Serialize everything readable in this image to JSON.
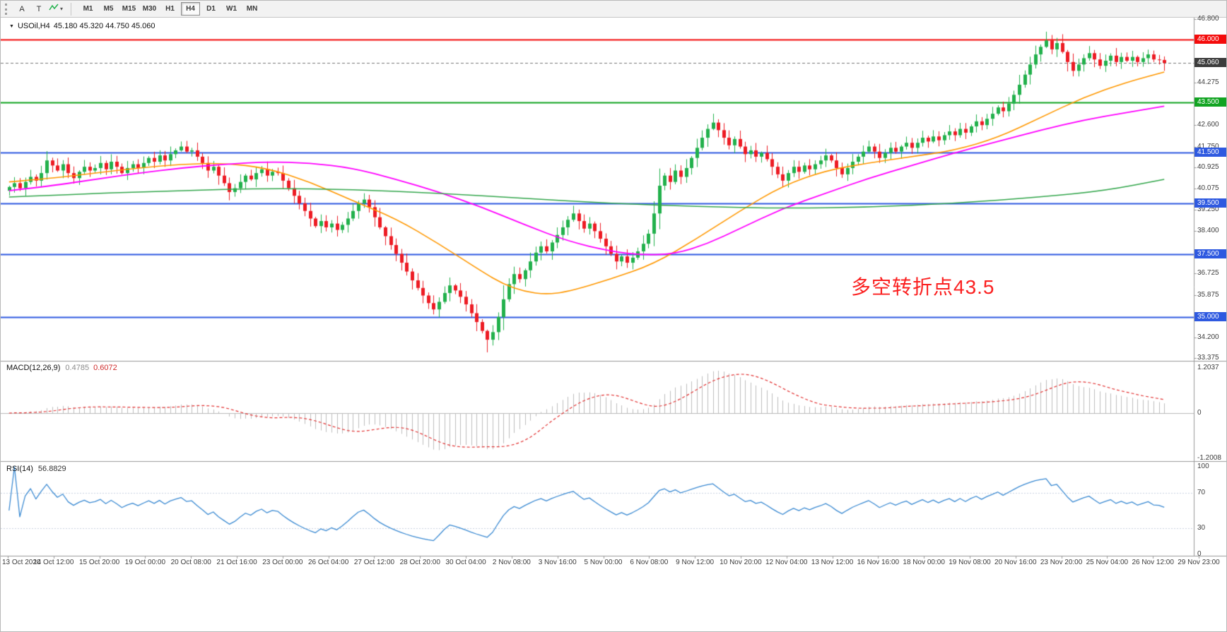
{
  "icons": {
    "dropdown_arrow": "▼",
    "caret": "▾"
  },
  "toolbar": {
    "tools": {
      "a": "A",
      "t": "T"
    },
    "timeframes": [
      "M1",
      "M5",
      "M15",
      "M30",
      "H1",
      "H4",
      "D1",
      "W1",
      "MN"
    ],
    "active_timeframe": "H4"
  },
  "chart": {
    "symbol_title": "USOil,H4",
    "ohlc_text": "45.180 45.320 44.750 45.060",
    "annotation": {
      "text": "多空转折点43.5",
      "color": "#fb2020"
    }
  },
  "chart_data": {
    "type": "candlestick",
    "symbol": "USOil",
    "timeframe": "H4",
    "title": "USOil,H4 45.180 45.320 44.750 45.060",
    "ylim": [
      33.375,
      46.8
    ],
    "last_candle": {
      "open": 45.18,
      "high": 45.32,
      "low": 44.75,
      "close": 45.06
    },
    "first_open": 40.0,
    "closes": [
      40.15,
      40.3,
      40.1,
      40.35,
      40.55,
      40.4,
      40.7,
      41.2,
      41.0,
      40.8,
      41.05,
      40.7,
      40.5,
      40.75,
      40.95,
      40.8,
      40.9,
      41.1,
      40.85,
      41.15,
      40.95,
      40.7,
      40.9,
      41.05,
      40.9,
      41.1,
      41.3,
      41.15,
      41.4,
      41.2,
      41.45,
      41.6,
      41.75,
      41.55,
      41.6,
      41.35,
      41.1,
      40.8,
      40.95,
      40.6,
      40.3,
      39.95,
      40.1,
      40.35,
      40.6,
      40.45,
      40.7,
      40.85,
      40.6,
      40.75,
      40.7,
      40.4,
      40.1,
      39.8,
      39.5,
      39.2,
      38.9,
      38.6,
      38.8,
      38.55,
      38.7,
      38.45,
      38.65,
      38.9,
      39.2,
      39.5,
      39.65,
      39.35,
      38.95,
      38.55,
      38.2,
      37.85,
      37.5,
      37.15,
      36.8,
      36.45,
      36.15,
      35.85,
      35.55,
      35.3,
      35.6,
      35.95,
      36.25,
      36.05,
      35.8,
      35.5,
      35.15,
      34.8,
      34.45,
      34.1,
      34.4,
      35.0,
      35.7,
      36.3,
      36.7,
      36.5,
      36.85,
      37.2,
      37.55,
      37.8,
      37.6,
      37.95,
      38.25,
      38.55,
      38.85,
      39.1,
      38.8,
      38.5,
      38.7,
      38.4,
      38.1,
      37.8,
      37.5,
      37.2,
      37.4,
      37.15,
      37.35,
      37.6,
      37.9,
      38.3,
      39.1,
      40.2,
      40.6,
      40.35,
      40.8,
      40.55,
      40.9,
      41.3,
      41.7,
      42.1,
      42.45,
      42.7,
      42.4,
      42.1,
      41.8,
      42.05,
      41.75,
      41.45,
      41.6,
      41.35,
      41.5,
      41.25,
      40.95,
      40.65,
      40.4,
      40.7,
      40.95,
      40.75,
      41.0,
      40.85,
      41.05,
      41.2,
      41.4,
      41.2,
      40.9,
      40.65,
      40.9,
      41.15,
      41.35,
      41.55,
      41.75,
      41.55,
      41.3,
      41.5,
      41.7,
      41.55,
      41.75,
      41.9,
      41.7,
      41.9,
      42.1,
      41.95,
      42.15,
      42.0,
      42.2,
      42.35,
      42.2,
      42.45,
      42.3,
      42.55,
      42.75,
      42.6,
      42.85,
      43.05,
      43.3,
      43.15,
      43.45,
      43.8,
      44.2,
      44.6,
      45.0,
      45.4,
      45.7,
      45.95,
      45.6,
      45.85,
      45.5,
      45.1,
      44.75,
      45.0,
      45.25,
      45.45,
      45.2,
      44.95,
      45.15,
      45.35,
      45.1,
      45.3,
      45.15,
      45.3,
      45.1,
      45.25,
      45.4,
      45.2,
      45.18,
      45.06
    ],
    "wick_overrides": {
      "32": [
        0.2,
        0.05
      ],
      "89": [
        0.05,
        0.5
      ],
      "131": [
        0.35,
        0.05
      ],
      "193": [
        0.35,
        0.05
      ],
      "215": [
        0.14,
        0.31
      ]
    },
    "colors": {
      "up": "#22b14c",
      "down": "#ed1c24"
    },
    "hlines": [
      {
        "price": 46.0,
        "color": "#f40b0b",
        "badge": "46.000",
        "width": 2
      },
      {
        "price": 43.5,
        "color": "#12a422",
        "badge": "43.500",
        "width": 2
      },
      {
        "price": 41.5,
        "color": "#2e59e0",
        "badge": "41.500",
        "width": 2
      },
      {
        "price": 39.5,
        "color": "#2e59e0",
        "badge": "39.500",
        "width": 2
      },
      {
        "price": 37.5,
        "color": "#2e59e0",
        "badge": "37.500",
        "width": 2
      },
      {
        "price": 35.0,
        "color": "#2e59e0",
        "badge": "35.000",
        "width": 2
      }
    ],
    "current_price": {
      "price": 45.06,
      "badge": "45.060",
      "badge_color": "#3c3c3c"
    },
    "price_ticks": [
      {
        "label": "46.800",
        "price": 46.8
      },
      {
        "label": "44.275",
        "price": 44.275
      },
      {
        "label": "42.600",
        "price": 42.6
      },
      {
        "label": "41.750",
        "price": 41.75
      },
      {
        "label": "40.925",
        "price": 40.925
      },
      {
        "label": "40.075",
        "price": 40.075
      },
      {
        "label": "39.250",
        "price": 39.25
      },
      {
        "label": "38.400",
        "price": 38.4
      },
      {
        "label": "36.725",
        "price": 36.725
      },
      {
        "label": "35.875",
        "price": 35.875
      },
      {
        "label": "34.200",
        "price": 34.2
      },
      {
        "label": "33.375",
        "price": 33.375
      }
    ],
    "time_labels": [
      "13 Oct 2020",
      "14 Oct 12:00",
      "15 Oct 20:00",
      "19 Oct 00:00",
      "20 Oct 08:00",
      "21 Oct 16:00",
      "23 Oct 00:00",
      "26 Oct 04:00",
      "27 Oct 12:00",
      "28 Oct 20:00",
      "30 Oct 04:00",
      "2 Nov 08:00",
      "3 Nov 16:00",
      "5 Nov 00:00",
      "6 Nov 08:00",
      "9 Nov 12:00",
      "10 Nov 20:00",
      "12 Nov 04:00",
      "13 Nov 12:00",
      "16 Nov 16:00",
      "18 Nov 00:00",
      "19 Nov 08:00",
      "20 Nov 16:00",
      "23 Nov 20:00",
      "25 Nov 04:00",
      "26 Nov 12:00",
      "29 Nov 23:00"
    ],
    "ma_lines": [
      {
        "name": "ma-orange",
        "color": "#ff9800",
        "width": 1.6,
        "anchors": [
          [
            0,
            40.35
          ],
          [
            8,
            40.5
          ],
          [
            16,
            40.7
          ],
          [
            24,
            40.9
          ],
          [
            32,
            41.05
          ],
          [
            40,
            41.1
          ],
          [
            48,
            40.9
          ],
          [
            56,
            40.35
          ],
          [
            64,
            39.6
          ],
          [
            72,
            38.9
          ],
          [
            80,
            37.9
          ],
          [
            88,
            36.8
          ],
          [
            92,
            36.3
          ],
          [
            96,
            36.0
          ],
          [
            100,
            35.9
          ],
          [
            104,
            36.0
          ],
          [
            112,
            36.5
          ],
          [
            120,
            37.1
          ],
          [
            128,
            38.1
          ],
          [
            136,
            39.2
          ],
          [
            144,
            40.2
          ],
          [
            152,
            40.8
          ],
          [
            160,
            41.1
          ],
          [
            168,
            41.35
          ],
          [
            176,
            41.6
          ],
          [
            184,
            42.1
          ],
          [
            192,
            42.9
          ],
          [
            200,
            43.7
          ],
          [
            208,
            44.3
          ],
          [
            215,
            44.7
          ]
        ]
      },
      {
        "name": "ma-magenta",
        "color": "#ff00ff",
        "width": 1.8,
        "anchors": [
          [
            0,
            40.0
          ],
          [
            8,
            40.2
          ],
          [
            16,
            40.45
          ],
          [
            24,
            40.7
          ],
          [
            32,
            40.9
          ],
          [
            40,
            41.05
          ],
          [
            48,
            41.15
          ],
          [
            56,
            41.1
          ],
          [
            64,
            40.9
          ],
          [
            72,
            40.45
          ],
          [
            80,
            39.95
          ],
          [
            88,
            39.35
          ],
          [
            96,
            38.65
          ],
          [
            104,
            38.0
          ],
          [
            112,
            37.6
          ],
          [
            118,
            37.45
          ],
          [
            124,
            37.5
          ],
          [
            130,
            37.9
          ],
          [
            136,
            38.5
          ],
          [
            144,
            39.3
          ],
          [
            152,
            39.9
          ],
          [
            160,
            40.5
          ],
          [
            168,
            41.0
          ],
          [
            176,
            41.5
          ],
          [
            184,
            41.95
          ],
          [
            192,
            42.4
          ],
          [
            200,
            42.8
          ],
          [
            208,
            43.1
          ],
          [
            215,
            43.35
          ]
        ]
      },
      {
        "name": "ma-green",
        "color": "#33a64c",
        "width": 1.5,
        "anchors": [
          [
            0,
            39.75
          ],
          [
            16,
            39.9
          ],
          [
            32,
            40.0
          ],
          [
            48,
            40.1
          ],
          [
            64,
            40.05
          ],
          [
            80,
            39.9
          ],
          [
            96,
            39.7
          ],
          [
            112,
            39.5
          ],
          [
            128,
            39.38
          ],
          [
            144,
            39.3
          ],
          [
            160,
            39.35
          ],
          [
            176,
            39.5
          ],
          [
            192,
            39.75
          ],
          [
            204,
            40.0
          ],
          [
            215,
            40.45
          ]
        ]
      }
    ],
    "macd": {
      "label": "MACD(12,26,9)",
      "value_main": "0.4785",
      "value_signal": "0.6072",
      "axis_top": "1.2037",
      "axis_zero": "0",
      "axis_bottom": "-1.2008",
      "histogram_color": "#bdbdbd",
      "signal_color": "#e23131"
    },
    "rsi": {
      "label": "RSI(14)",
      "value": "56.8829",
      "levels": [
        30,
        70
      ],
      "axis_labels": [
        "100",
        "70",
        "30",
        "0"
      ],
      "line_color": "#3b8ad2",
      "level_color": "#c9d2e0"
    }
  }
}
